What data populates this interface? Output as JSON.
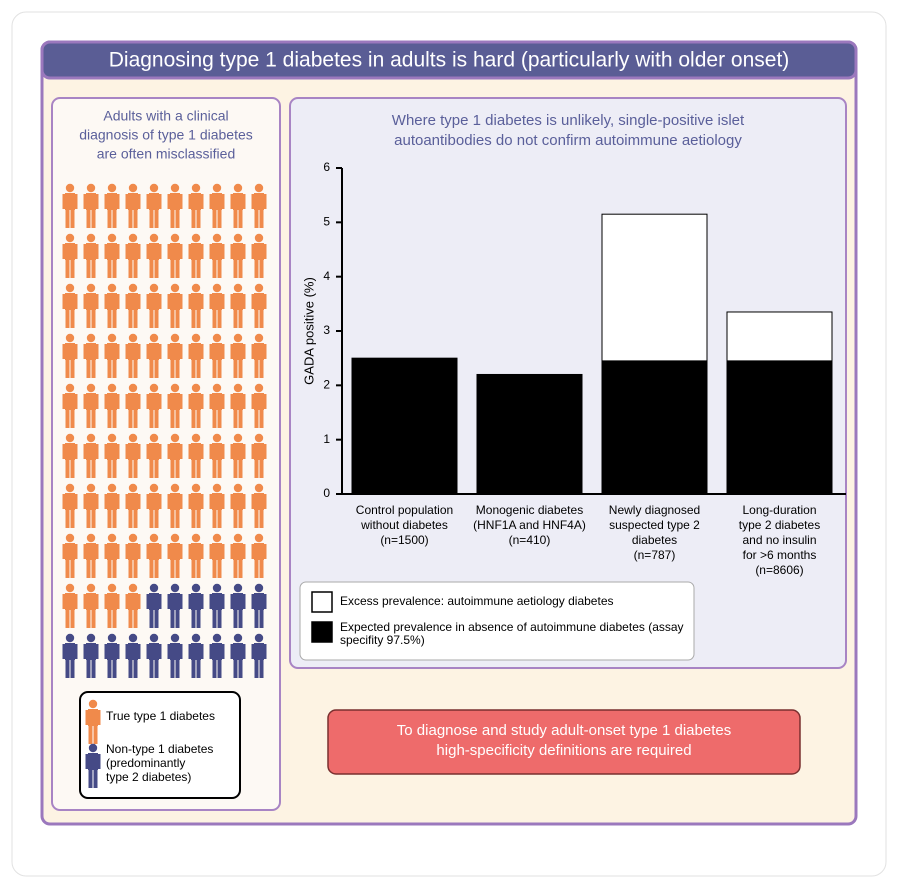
{
  "header": {
    "title": "Diagnosing type 1 diabetes in adults is hard (particularly with older onset)"
  },
  "left_panel": {
    "title_lines": [
      "Adults with a clinical",
      "diagnosis of type 1 diabetes",
      "are often misclassified"
    ],
    "pictogram": {
      "true_type1": 84,
      "non_type1": 16,
      "true_color": "#f08a4b",
      "non_color": "#454a86"
    },
    "legend": [
      {
        "lines": [
          "True type 1 diabetes"
        ]
      },
      {
        "lines": [
          "Non-type 1 diabetes",
          "(predominantly",
          "type 2 diabetes)"
        ]
      }
    ]
  },
  "chart_data": {
    "type": "stacked_bar",
    "title_lines": [
      "Where type 1 diabetes is unlikely, single-positive islet",
      "autoantibodies do not confirm autoimmune aetiology"
    ],
    "y_label": "GADA positive  (%)",
    "categories": [
      [
        "Control population",
        "without diabetes",
        "(n=1500)"
      ],
      [
        "Monogenic diabetes",
        "(HNF1A and HNF4A)",
        "(n=410)"
      ],
      [
        "Newly diagnosed",
        "suspected type 2",
        "diabetes",
        "(n=787)"
      ],
      [
        "Long-duration",
        "type 2 diabetes",
        "and no insulin",
        "for >6 months",
        "(n=8606)"
      ]
    ],
    "series": [
      {
        "name": "Expected prevalence in absence of autoimmune diabetes (assay specifity 97.5%)",
        "color": "#000000",
        "values": [
          2.5,
          2.2,
          2.45,
          2.45
        ]
      },
      {
        "name": "Excess prevalence: autoimmune aetiology diabetes",
        "color": "#ffffff",
        "values": [
          0,
          0,
          2.7,
          0.9
        ]
      }
    ],
    "ylim": [
      0,
      6
    ],
    "yticks": [
      0,
      1,
      2,
      3,
      4,
      5,
      6
    ]
  },
  "conclusion": {
    "lines": [
      "To diagnose and study adult-onset type 1 diabetes",
      "high-specificity definitions are required"
    ]
  }
}
